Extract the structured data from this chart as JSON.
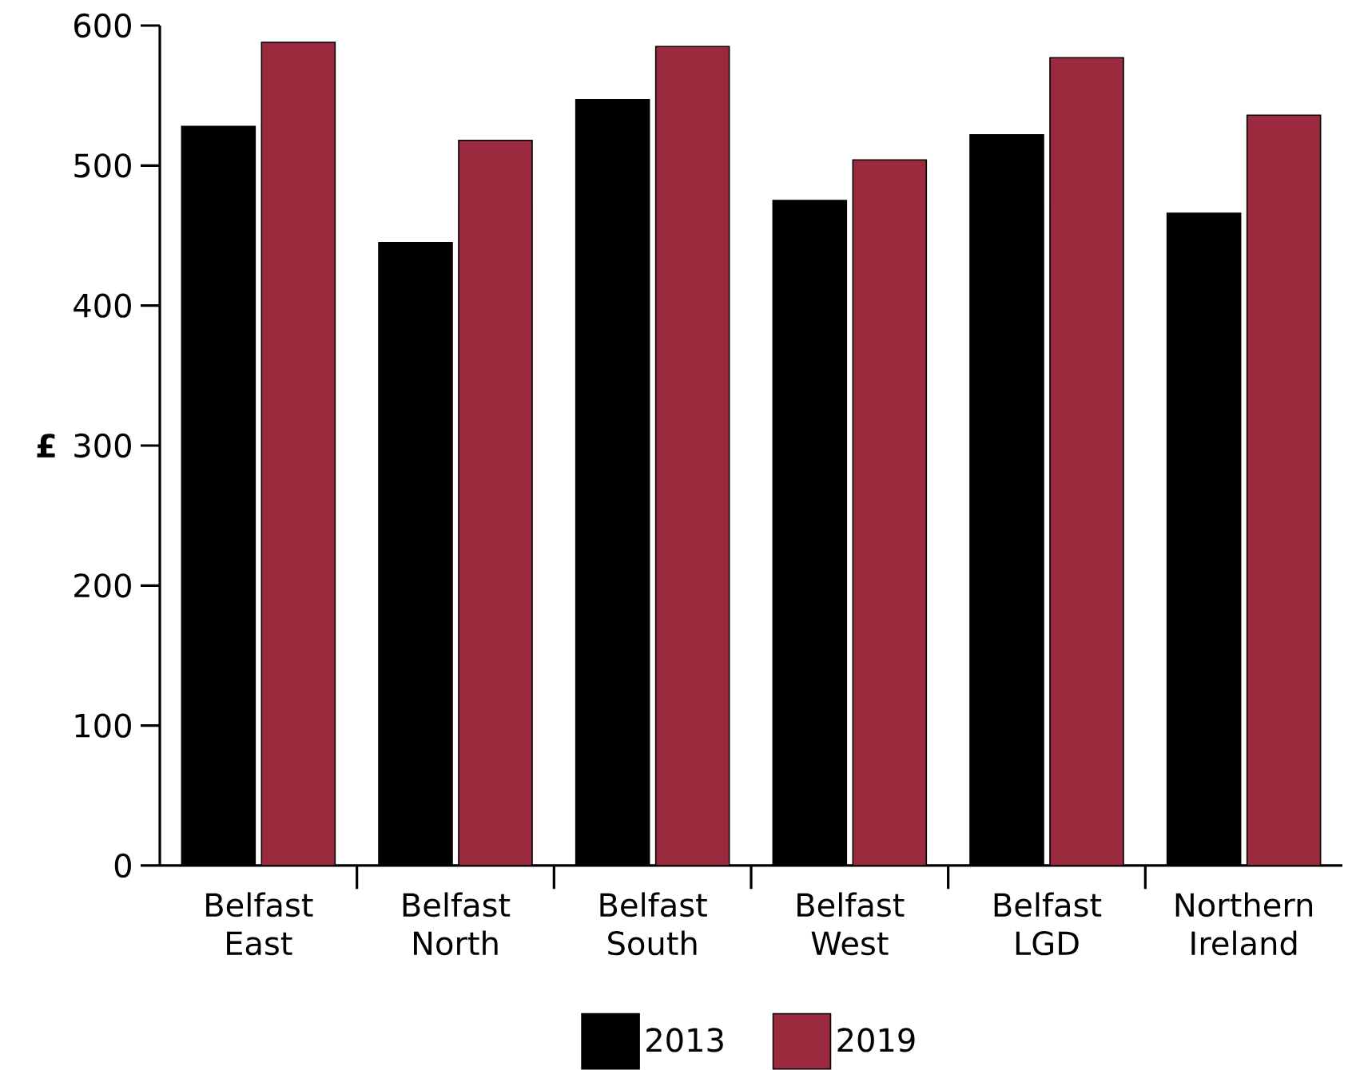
{
  "chart_data": {
    "type": "bar",
    "ylabel": "£",
    "categories": [
      "Belfast East",
      "Belfast North",
      "Belfast South",
      "Belfast West",
      "Belfast LGD",
      "Northern Ireland"
    ],
    "series": [
      {
        "name": "2013",
        "color": "#000000",
        "values": [
          528,
          445,
          547,
          475,
          522,
          466
        ]
      },
      {
        "name": "2019",
        "color": "#9b2a3e",
        "values": [
          588,
          518,
          585,
          504,
          577,
          536
        ]
      }
    ],
    "ylim": [
      0,
      600
    ],
    "yticks": [
      0,
      100,
      200,
      300,
      400,
      500,
      600
    ],
    "legend": "bottom"
  }
}
